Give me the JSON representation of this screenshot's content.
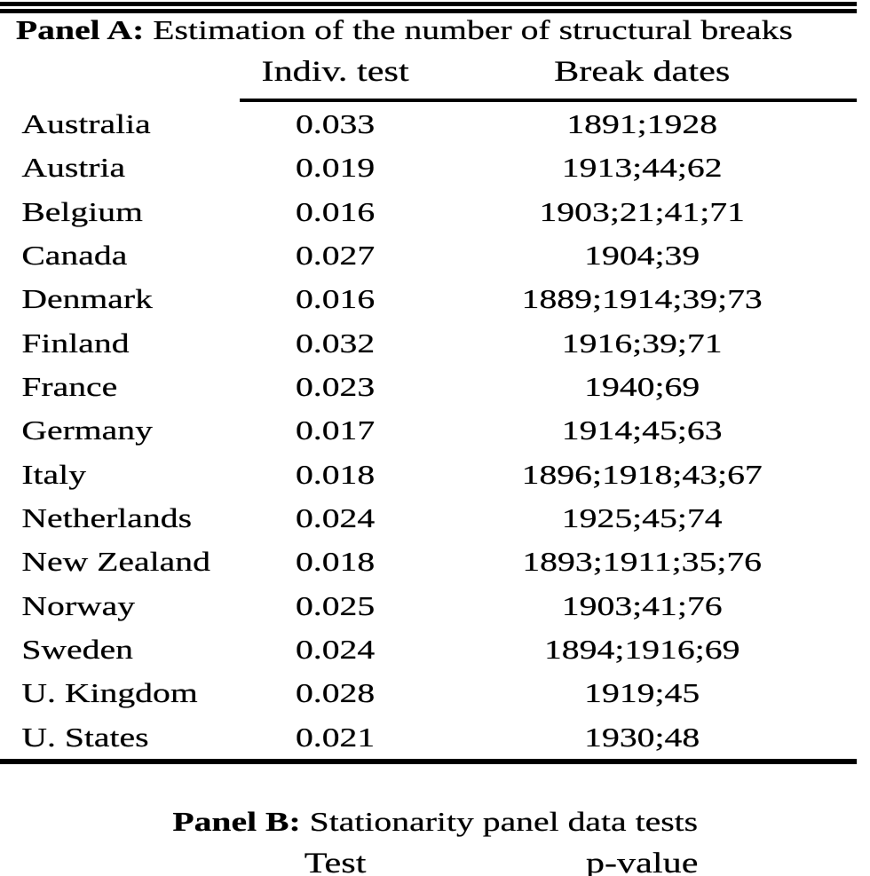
{
  "panel_a": {
    "title_label": "Panel A:",
    "title_text": "Estimation of the number of structural breaks",
    "columns": [
      "",
      "Indiv. test",
      "Break dates"
    ],
    "rows": [
      {
        "country": "Australia",
        "test": "0.033",
        "breaks": "1891;1928"
      },
      {
        "country": "Austria",
        "test": "0.019",
        "breaks": "1913;44;62"
      },
      {
        "country": "Belgium",
        "test": "0.016",
        "breaks": "1903;21;41;71"
      },
      {
        "country": "Canada",
        "test": "0.027",
        "breaks": "1904;39"
      },
      {
        "country": "Denmark",
        "test": "0.016",
        "breaks": "1889;1914;39;73"
      },
      {
        "country": "Finland",
        "test": "0.032",
        "breaks": "1916;39;71"
      },
      {
        "country": "France",
        "test": "0.023",
        "breaks": "1940;69"
      },
      {
        "country": "Germany",
        "test": "0.017",
        "breaks": "1914;45;63"
      },
      {
        "country": "Italy",
        "test": "0.018",
        "breaks": "1896;1918;43;67"
      },
      {
        "country": "Netherlands",
        "test": "0.024",
        "breaks": "1925;45;74"
      },
      {
        "country": "New Zealand",
        "test": "0.018",
        "breaks": "1893;1911;35;76"
      },
      {
        "country": "Norway",
        "test": "0.025",
        "breaks": "1903;41;76"
      },
      {
        "country": "Sweden",
        "test": "0.024",
        "breaks": "1894;1916;69"
      },
      {
        "country": "U. Kingdom",
        "test": "0.028",
        "breaks": "1919;45"
      },
      {
        "country": "U. States",
        "test": "0.021",
        "breaks": "1930;48"
      }
    ]
  },
  "panel_b": {
    "title_label": "Panel B:",
    "title_text": "Stationarity panel data tests",
    "columns": [
      "Test",
      "p-value"
    ]
  },
  "colors": {
    "text": "#000000",
    "background": "#ffffff",
    "rule": "#000000"
  }
}
